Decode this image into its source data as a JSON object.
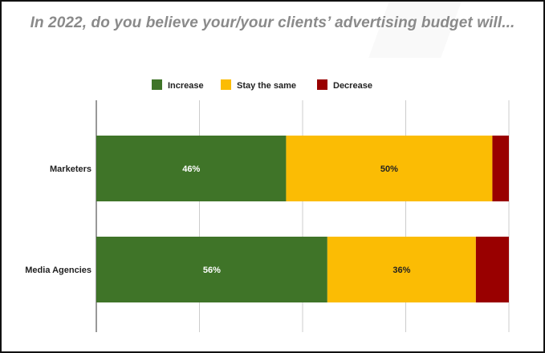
{
  "colors": {
    "increase": "#3f7428",
    "stay": "#fbbc04",
    "decrease": "#990000",
    "grid": "#cccccc",
    "title": "#8a8a8a"
  },
  "chart_data": {
    "type": "bar",
    "orientation": "horizontal",
    "stacked": true,
    "title": "In 2022, do you believe your/your clients’ advertising budget will...",
    "xlabel": "",
    "ylabel": "",
    "xlim": [
      0,
      100
    ],
    "grid": true,
    "legend_position": "top",
    "categories": [
      "Marketers",
      "Media Agencies"
    ],
    "series": [
      {
        "name": "Increase",
        "color": "#3f7428",
        "values": [
          46,
          56
        ],
        "labels": [
          "46%",
          "56%"
        ]
      },
      {
        "name": "Stay the same",
        "color": "#fbbc04",
        "values": [
          50,
          36
        ],
        "labels": [
          "50%",
          "36%"
        ]
      },
      {
        "name": "Decrease",
        "color": "#990000",
        "values": [
          4,
          8
        ],
        "labels": [
          "",
          ""
        ]
      }
    ]
  }
}
